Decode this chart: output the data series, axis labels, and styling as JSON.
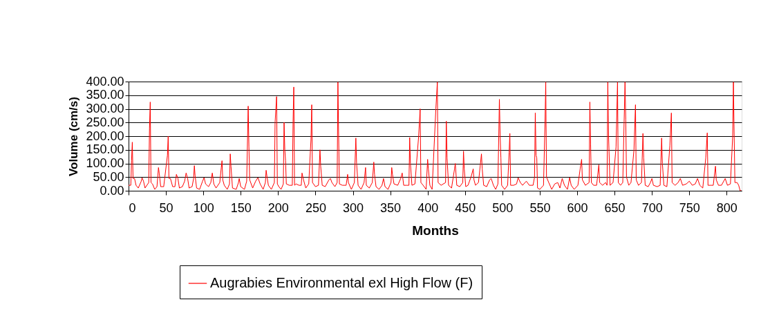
{
  "chart_data": {
    "type": "line",
    "xlabel": "Months",
    "ylabel": "Volume (cm/s)",
    "xlim": [
      0,
      820
    ],
    "xticks": [
      0,
      50,
      100,
      150,
      200,
      250,
      300,
      350,
      400,
      450,
      500,
      550,
      600,
      650,
      700,
      750,
      800
    ],
    "ylim": [
      0,
      400
    ],
    "yticks": [
      {
        "value": 0,
        "label": "0.00"
      },
      {
        "value": 50,
        "label": "50.00"
      },
      {
        "value": 100,
        "label": "100.00"
      },
      {
        "value": 150,
        "label": "150.00"
      },
      {
        "value": 200,
        "label": "200.00"
      },
      {
        "value": 250,
        "label": "250.00"
      },
      {
        "value": 300,
        "label": "300.00"
      },
      {
        "value": 350,
        "label": "350.00"
      },
      {
        "value": 400,
        "label": "400.00"
      }
    ],
    "grid": "y",
    "legend": "bottom",
    "marker": "none",
    "line_style": "solid",
    "series": [
      {
        "name": "Augrabies Environmental exl High Flow (F)",
        "color": "#ff0000",
        "x": [
          0,
          3,
          4,
          5,
          6,
          8,
          10,
          13,
          17,
          18,
          20,
          22,
          27,
          28,
          29,
          30,
          32,
          35,
          38,
          40,
          41,
          43,
          47,
          52,
          53,
          54,
          56,
          59,
          62,
          64,
          66,
          68,
          72,
          75,
          77,
          79,
          81,
          85,
          87,
          88,
          89,
          91,
          95,
          99,
          101,
          103,
          107,
          110,
          112,
          114,
          117,
          122,
          124,
          125,
          126,
          128,
          132,
          135,
          136,
          137,
          139,
          144,
          147,
          148,
          150,
          155,
          158,
          160,
          161,
          162,
          166,
          170,
          173,
          176,
          180,
          183,
          184,
          185,
          187,
          191,
          195,
          196,
          198,
          199,
          201,
          204,
          207,
          208,
          209,
          210,
          211,
          215,
          219,
          220,
          221,
          222,
          224,
          228,
          231,
          232,
          234,
          237,
          241,
          244,
          245,
          246,
          250,
          254,
          256,
          257,
          259,
          263,
          268,
          270,
          272,
          276,
          279,
          280,
          281,
          282,
          286,
          291,
          293,
          294,
          298,
          302,
          304,
          305,
          307,
          311,
          315,
          317,
          318,
          322,
          326,
          328,
          329,
          331,
          335,
          339,
          341,
          343,
          347,
          351,
          352,
          353,
          355,
          360,
          364,
          366,
          368,
          372,
          375,
          376,
          377,
          379,
          383,
          388,
          390,
          391,
          394,
          398,
          400,
          401,
          403,
          406,
          411,
          413,
          414,
          418,
          424,
          425,
          426,
          428,
          432,
          436,
          437,
          439,
          443,
          447,
          448,
          449,
          451,
          454,
          458,
          461,
          462,
          464,
          468,
          472,
          473,
          475,
          479,
          483,
          485,
          488,
          491,
          494,
          496,
          497,
          498,
          499,
          503,
          507,
          509,
          510,
          511,
          515,
          519,
          521,
          524,
          527,
          532,
          536,
          541,
          543,
          544,
          545,
          546,
          547,
          550,
          555,
          557,
          558,
          559,
          562,
          566,
          570,
          574,
          577,
          580,
          583,
          587,
          590,
          592,
          596,
          601,
          604,
          606,
          607,
          611,
          616,
          617,
          618,
          619,
          622,
          626,
          629,
          630,
          634,
          638,
          640,
          641,
          642,
          644,
          648,
          652,
          654,
          655,
          658,
          661,
          664,
          665,
          666,
          669,
          672,
          676,
          678,
          679,
          682,
          686,
          688,
          689,
          691,
          695,
          698,
          700,
          702,
          707,
          711,
          713,
          714,
          716,
          720,
          724,
          726,
          727,
          731,
          735,
          738,
          741,
          746,
          750,
          754,
          758,
          761,
          764,
          768,
          772,
          774,
          775,
          779,
          782,
          785,
          786,
          789,
          793,
          797,
          798,
          801,
          805,
          808,
          809,
          810,
          811,
          814,
          816,
          818,
          820
        ],
        "values": [
          20,
          20,
          110,
          178,
          45,
          45,
          20,
          10,
          35,
          48,
          35,
          10,
          30,
          230,
          325,
          30,
          25,
          5,
          15,
          85,
          65,
          15,
          15,
          130,
          200,
          45,
          45,
          15,
          15,
          60,
          45,
          10,
          15,
          35,
          65,
          45,
          10,
          15,
          45,
          92,
          55,
          10,
          5,
          35,
          48,
          25,
          15,
          30,
          65,
          25,
          10,
          30,
          85,
          110,
          40,
          20,
          5,
          25,
          135,
          90,
          10,
          5,
          30,
          45,
          15,
          5,
          35,
          310,
          160,
          40,
          10,
          35,
          48,
          25,
          5,
          30,
          75,
          55,
          20,
          5,
          30,
          250,
          345,
          25,
          15,
          5,
          25,
          250,
          150,
          110,
          25,
          20,
          20,
          250,
          380,
          20,
          25,
          20,
          20,
          65,
          40,
          10,
          25,
          190,
          315,
          30,
          15,
          20,
          150,
          90,
          20,
          15,
          40,
          45,
          30,
          15,
          30,
          398,
          200,
          25,
          20,
          20,
          60,
          30,
          5,
          30,
          193,
          100,
          20,
          5,
          30,
          85,
          20,
          10,
          30,
          105,
          60,
          15,
          5,
          20,
          45,
          15,
          5,
          30,
          85,
          60,
          25,
          20,
          45,
          65,
          20,
          20,
          20,
          195,
          100,
          20,
          25,
          200,
          300,
          30,
          20,
          5,
          115,
          80,
          20,
          5,
          300,
          398,
          30,
          20,
          30,
          255,
          120,
          20,
          10,
          80,
          100,
          20,
          15,
          30,
          145,
          80,
          15,
          20,
          50,
          80,
          40,
          20,
          30,
          135,
          80,
          20,
          15,
          40,
          45,
          20,
          5,
          25,
          335,
          200,
          120,
          20,
          5,
          20,
          140,
          210,
          20,
          20,
          25,
          48,
          30,
          20,
          35,
          20,
          20,
          50,
          285,
          130,
          120,
          10,
          5,
          20,
          250,
          398,
          50,
          30,
          5,
          25,
          30,
          10,
          45,
          20,
          5,
          48,
          20,
          5,
          20,
          80,
          115,
          40,
          20,
          30,
          325,
          170,
          30,
          20,
          20,
          95,
          30,
          20,
          30,
          20,
          398,
          200,
          20,
          30,
          160,
          398,
          30,
          20,
          30,
          398,
          260,
          50,
          20,
          30,
          150,
          315,
          40,
          20,
          30,
          210,
          120,
          20,
          15,
          30,
          45,
          20,
          15,
          20,
          193,
          100,
          20,
          15,
          165,
          285,
          30,
          20,
          30,
          45,
          20,
          25,
          35,
          20,
          25,
          45,
          20,
          10,
          120,
          212,
          20,
          20,
          20,
          90,
          40,
          20,
          20,
          40,
          45,
          20,
          25,
          200,
          398,
          200,
          30,
          30,
          20,
          0,
          0
        ]
      }
    ]
  }
}
